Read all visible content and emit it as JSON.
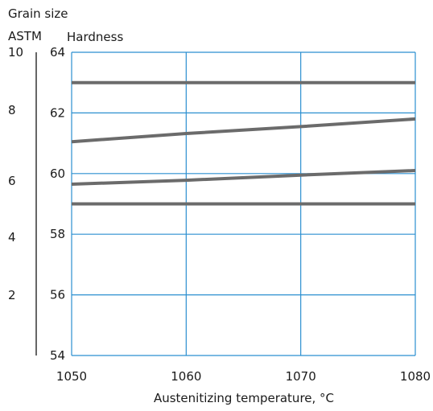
{
  "chart_data": {
    "type": "line",
    "title": "",
    "xlabel": "Austenitizing temperature, °C",
    "left_axis_title": [
      "Grain size",
      "ASTM"
    ],
    "ylabel": "Hardness",
    "x_ticks": [
      "1050",
      "1060",
      "1070",
      "1080"
    ],
    "y_ticks": [
      "54",
      "56",
      "58",
      "60",
      "62",
      "64"
    ],
    "grain_ticks": [
      "10",
      "8",
      "6",
      "4",
      "2"
    ],
    "xlim": [
      1050,
      1080
    ],
    "ylim": [
      54,
      64
    ],
    "grid": true,
    "colors": {
      "grid": "#2b8fd0",
      "line": "#6b6b6b",
      "axis": "#333333"
    },
    "series": [
      {
        "x": [
          1050,
          1080
        ],
        "y": [
          63.0,
          63.0
        ]
      },
      {
        "x": [
          1050,
          1060,
          1070,
          1080
        ],
        "y": [
          61.05,
          61.32,
          61.55,
          61.8
        ]
      },
      {
        "x": [
          1050,
          1060,
          1070,
          1080
        ],
        "y": [
          59.65,
          59.78,
          59.95,
          60.1
        ]
      },
      {
        "x": [
          1050,
          1080
        ],
        "y": [
          59.0,
          59.0
        ]
      }
    ]
  }
}
